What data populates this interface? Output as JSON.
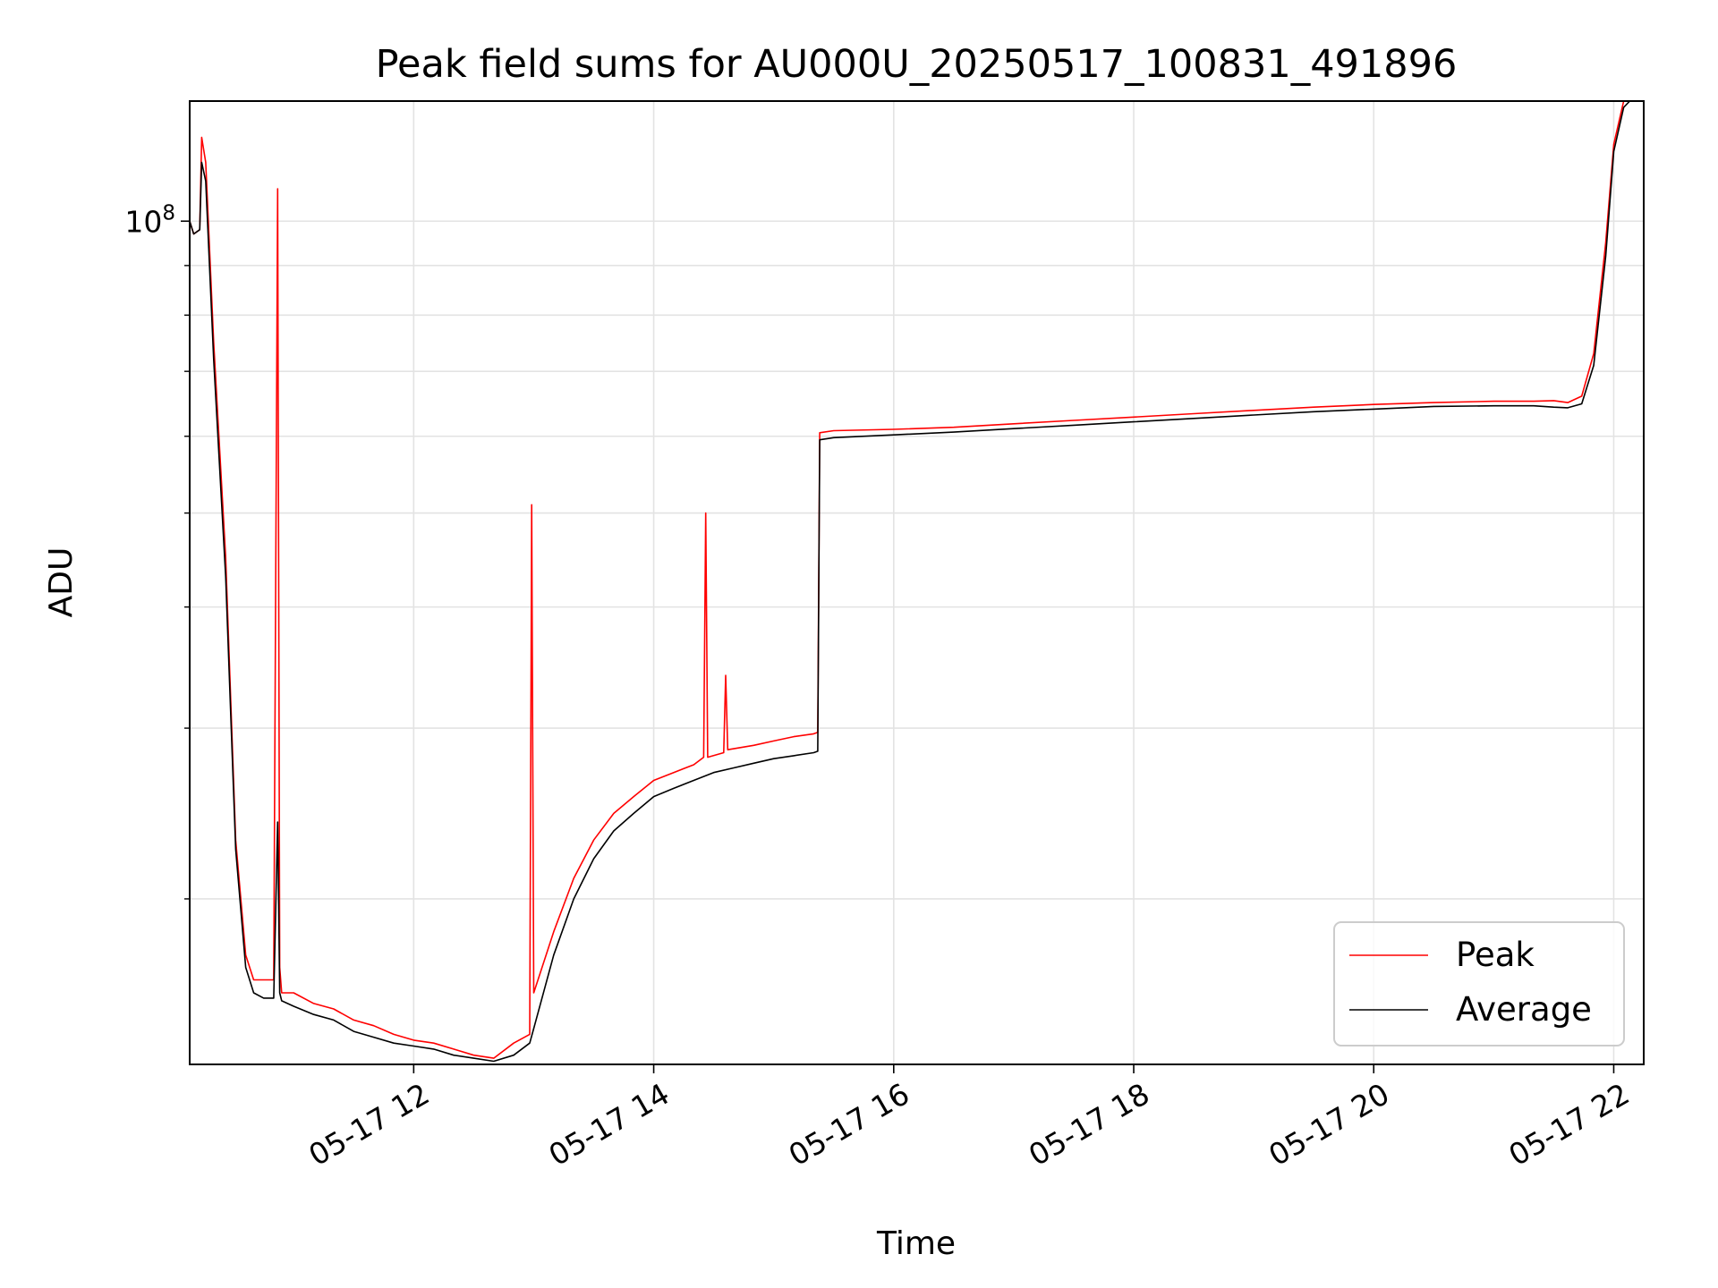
{
  "chart_data": {
    "type": "line",
    "title": "Peak field sums for AU000U_20250517_100831_491896",
    "xlabel": "Time",
    "ylabel": "ADU",
    "x_scale": "time",
    "y_scale": "log",
    "xlim": [
      "2025-05-17 10:08",
      "2025-05-17 22:15"
    ],
    "ylim": [
      13500000,
      133000000
    ],
    "x_ticks": [
      {
        "value": "2025-05-17 12:00",
        "label": "05-17 12"
      },
      {
        "value": "2025-05-17 14:00",
        "label": "05-17 14"
      },
      {
        "value": "2025-05-17 16:00",
        "label": "05-17 16"
      },
      {
        "value": "2025-05-17 18:00",
        "label": "05-17 18"
      },
      {
        "value": "2025-05-17 20:00",
        "label": "05-17 20"
      },
      {
        "value": "2025-05-17 22:00",
        "label": "05-17 22"
      }
    ],
    "y_major_ticks": [
      {
        "value": 100000000,
        "label_base": "10",
        "label_exp": "8"
      }
    ],
    "y_minor_ticks": [
      20000000,
      30000000,
      40000000,
      50000000,
      60000000,
      70000000,
      80000000,
      90000000
    ],
    "grid": true,
    "legend_position": "lower-right",
    "series": [
      {
        "name": "Peak",
        "color": "#ff0000",
        "x": [
          "2025-05-17 10:08",
          "2025-05-17 10:10",
          "2025-05-17 10:13",
          "2025-05-17 10:14",
          "2025-05-17 10:16",
          "2025-05-17 10:20",
          "2025-05-17 10:26",
          "2025-05-17 10:31",
          "2025-05-17 10:36",
          "2025-05-17 10:40",
          "2025-05-17 10:45",
          "2025-05-17 10:50",
          "2025-05-17 10:52",
          "2025-05-17 10:53",
          "2025-05-17 10:54",
          "2025-05-17 11:00",
          "2025-05-17 11:10",
          "2025-05-17 11:20",
          "2025-05-17 11:30",
          "2025-05-17 11:40",
          "2025-05-17 11:50",
          "2025-05-17 12:00",
          "2025-05-17 12:10",
          "2025-05-17 12:20",
          "2025-05-17 12:30",
          "2025-05-17 12:40",
          "2025-05-17 12:50",
          "2025-05-17 12:58",
          "2025-05-17 12:59",
          "2025-05-17 13:00",
          "2025-05-17 13:10",
          "2025-05-17 13:20",
          "2025-05-17 13:30",
          "2025-05-17 13:40",
          "2025-05-17 13:50",
          "2025-05-17 14:00",
          "2025-05-17 14:10",
          "2025-05-17 14:20",
          "2025-05-17 14:25",
          "2025-05-17 14:26",
          "2025-05-17 14:27",
          "2025-05-17 14:35",
          "2025-05-17 14:36",
          "2025-05-17 14:37",
          "2025-05-17 14:50",
          "2025-05-17 15:00",
          "2025-05-17 15:10",
          "2025-05-17 15:20",
          "2025-05-17 15:22",
          "2025-05-17 15:23",
          "2025-05-17 15:30",
          "2025-05-17 16:00",
          "2025-05-17 16:30",
          "2025-05-17 17:00",
          "2025-05-17 17:30",
          "2025-05-17 18:00",
          "2025-05-17 18:30",
          "2025-05-17 19:00",
          "2025-05-17 19:30",
          "2025-05-17 20:00",
          "2025-05-17 20:30",
          "2025-05-17 21:00",
          "2025-05-17 21:20",
          "2025-05-17 21:30",
          "2025-05-17 21:37",
          "2025-05-17 21:44",
          "2025-05-17 21:50",
          "2025-05-17 21:56",
          "2025-05-17 22:00",
          "2025-05-17 22:05",
          "2025-05-17 22:08",
          "2025-05-17 22:15"
        ],
        "y": [
          100000000,
          97000000,
          98000000,
          122000000,
          115000000,
          75000000,
          45000000,
          23000000,
          17500000,
          16500000,
          16500000,
          16500000,
          108000000,
          17000000,
          16000000,
          16000000,
          15600000,
          15400000,
          15000000,
          14800000,
          14500000,
          14300000,
          14200000,
          14000000,
          13800000,
          13700000,
          14200000,
          14500000,
          51000000,
          16000000,
          18500000,
          21000000,
          23000000,
          24500000,
          25500000,
          26500000,
          27000000,
          27500000,
          28000000,
          50000000,
          28000000,
          28300000,
          34000000,
          28500000,
          28800000,
          29100000,
          29400000,
          29600000,
          29700000,
          60500000,
          60800000,
          61000000,
          61300000,
          61800000,
          62300000,
          62800000,
          63300000,
          63800000,
          64300000,
          64700000,
          65000000,
          65200000,
          65200000,
          65300000,
          65000000,
          66000000,
          73000000,
          95000000,
          120000000,
          133000000,
          133000000,
          133000000
        ]
      },
      {
        "name": "Average",
        "color": "#000000",
        "x": [
          "2025-05-17 10:08",
          "2025-05-17 10:10",
          "2025-05-17 10:13",
          "2025-05-17 10:14",
          "2025-05-17 10:16",
          "2025-05-17 10:20",
          "2025-05-17 10:26",
          "2025-05-17 10:31",
          "2025-05-17 10:36",
          "2025-05-17 10:40",
          "2025-05-17 10:45",
          "2025-05-17 10:50",
          "2025-05-17 10:52",
          "2025-05-17 10:53",
          "2025-05-17 10:54",
          "2025-05-17 11:00",
          "2025-05-17 11:10",
          "2025-05-17 11:20",
          "2025-05-17 11:30",
          "2025-05-17 11:40",
          "2025-05-17 11:50",
          "2025-05-17 12:00",
          "2025-05-17 12:10",
          "2025-05-17 12:20",
          "2025-05-17 12:30",
          "2025-05-17 12:40",
          "2025-05-17 12:50",
          "2025-05-17 12:58",
          "2025-05-17 13:00",
          "2025-05-17 13:10",
          "2025-05-17 13:20",
          "2025-05-17 13:30",
          "2025-05-17 13:40",
          "2025-05-17 13:50",
          "2025-05-17 14:00",
          "2025-05-17 14:10",
          "2025-05-17 14:20",
          "2025-05-17 14:30",
          "2025-05-17 14:40",
          "2025-05-17 14:50",
          "2025-05-17 15:00",
          "2025-05-17 15:10",
          "2025-05-17 15:20",
          "2025-05-17 15:22",
          "2025-05-17 15:23",
          "2025-05-17 15:30",
          "2025-05-17 16:00",
          "2025-05-17 16:30",
          "2025-05-17 17:00",
          "2025-05-17 17:30",
          "2025-05-17 18:00",
          "2025-05-17 18:30",
          "2025-05-17 19:00",
          "2025-05-17 19:30",
          "2025-05-17 20:00",
          "2025-05-17 20:30",
          "2025-05-17 21:00",
          "2025-05-17 21:20",
          "2025-05-17 21:30",
          "2025-05-17 21:37",
          "2025-05-17 21:44",
          "2025-05-17 21:50",
          "2025-05-17 21:56",
          "2025-05-17 22:00",
          "2025-05-17 22:05",
          "2025-05-17 22:08",
          "2025-05-17 22:15"
        ],
        "y": [
          100000000,
          97000000,
          98000000,
          115000000,
          110000000,
          72000000,
          43000000,
          22500000,
          17000000,
          16000000,
          15800000,
          15800000,
          24000000,
          16000000,
          15700000,
          15500000,
          15200000,
          15000000,
          14600000,
          14400000,
          14200000,
          14100000,
          14000000,
          13800000,
          13700000,
          13600000,
          13800000,
          14200000,
          14700000,
          17500000,
          20000000,
          22000000,
          23500000,
          24500000,
          25500000,
          26000000,
          26500000,
          27000000,
          27300000,
          27600000,
          27900000,
          28100000,
          28300000,
          28400000,
          59500000,
          59800000,
          60200000,
          60600000,
          61100000,
          61600000,
          62100000,
          62600000,
          63100000,
          63600000,
          64000000,
          64400000,
          64500000,
          64500000,
          64300000,
          64200000,
          64800000,
          71000000,
          92000000,
          118000000,
          131000000,
          133000000,
          133000000
        ]
      }
    ]
  }
}
